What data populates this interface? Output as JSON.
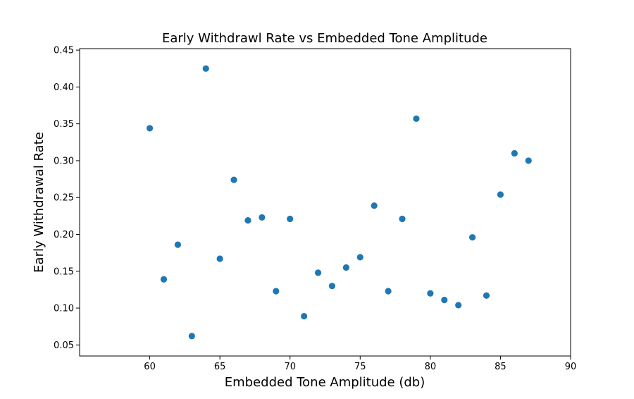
{
  "chart_data": {
    "type": "scatter",
    "title": "Early Withdrawl Rate vs Embedded Tone Amplitude",
    "xlabel": "Embedded Tone Amplitude (db)",
    "ylabel": "Early Withdrawal Rate",
    "xlim": [
      55,
      90
    ],
    "ylim": [
      0.035,
      0.452
    ],
    "xticks": [
      "60",
      "65",
      "70",
      "75",
      "80",
      "85",
      "90"
    ],
    "yticks": [
      "0.05",
      "0.10",
      "0.15",
      "0.20",
      "0.25",
      "0.30",
      "0.35",
      "0.40",
      "0.45"
    ],
    "grid": false,
    "marker_color": "#1f77b4",
    "points": [
      [
        60,
        0.344
      ],
      [
        61,
        0.139
      ],
      [
        62,
        0.186
      ],
      [
        63,
        0.062
      ],
      [
        64,
        0.425
      ],
      [
        65,
        0.167
      ],
      [
        66,
        0.274
      ],
      [
        67,
        0.219
      ],
      [
        68,
        0.223
      ],
      [
        69,
        0.123
      ],
      [
        70,
        0.221
      ],
      [
        71,
        0.089
      ],
      [
        72,
        0.148
      ],
      [
        73,
        0.13
      ],
      [
        74,
        0.155
      ],
      [
        75,
        0.169
      ],
      [
        76,
        0.239
      ],
      [
        77,
        0.123
      ],
      [
        78,
        0.221
      ],
      [
        79,
        0.357
      ],
      [
        80,
        0.12
      ],
      [
        81,
        0.111
      ],
      [
        82,
        0.104
      ],
      [
        83,
        0.196
      ],
      [
        84,
        0.117
      ],
      [
        85,
        0.254
      ],
      [
        86,
        0.31
      ],
      [
        87,
        0.3
      ]
    ]
  }
}
